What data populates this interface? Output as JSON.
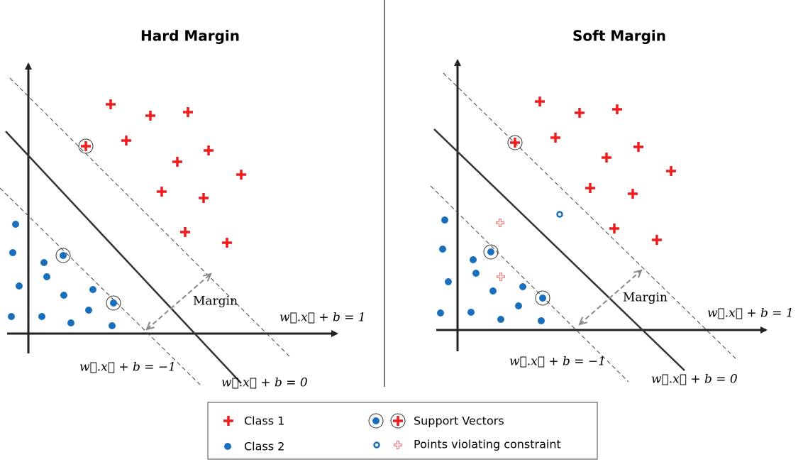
{
  "panels": [
    {
      "title": "Hard Margin",
      "labels": {
        "margin": "Margin",
        "positive": "w⃗.x⃗ + b = 1",
        "negative": "w⃗.x⃗ + b = −1",
        "boundary": "w⃗.x⃗ + b = 0"
      }
    },
    {
      "title": "Soft Margin",
      "labels": {
        "margin": "Margin",
        "positive": "w⃗.x⃗ + b = 1",
        "negative": "w⃗.x⃗ + b = −1",
        "boundary": "w⃗.x⃗ + b = 0"
      }
    }
  ],
  "legend": {
    "items": [
      "Class 1",
      "Class 2",
      "Support Vectors",
      "Points violating constraint"
    ]
  }
}
